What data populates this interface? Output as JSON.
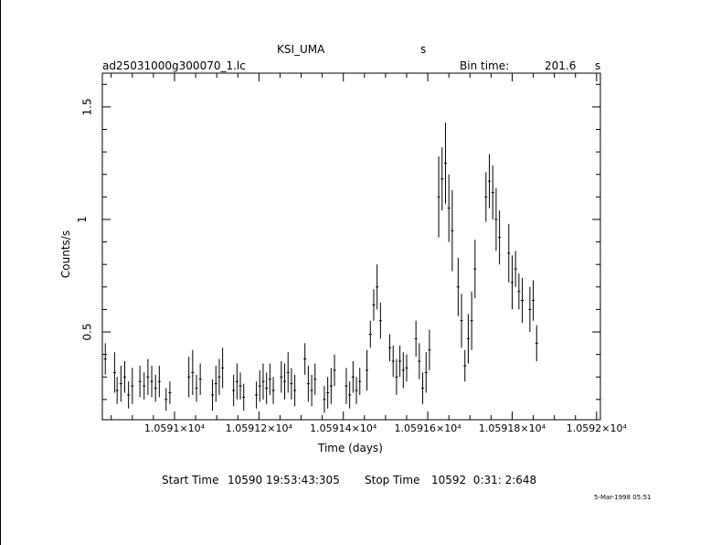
{
  "header": {
    "object": "KSI_UMA",
    "object_unit": "s",
    "filename": "ad25031000g300070_1.lc",
    "bin_label": "Bin time:",
    "bin_value": "201.6",
    "bin_unit": "s"
  },
  "footer": {
    "start_label": "Start Time",
    "start_value": "10590 19:53:43:305",
    "stop_label": "Stop Time",
    "stop_value": "10592  0:31: 2:648",
    "date_stamp": "5-Mar-1998 05:51"
  },
  "chart_data": {
    "type": "scatter",
    "xlabel": "Time (days)",
    "ylabel": "Counts/s",
    "xlim": [
      10590.829,
      10592.009
    ],
    "ylim": [
      0.11,
      1.65
    ],
    "yticks": [
      0.5,
      1,
      1.5
    ],
    "ytick_labels": [
      "0.5",
      "1",
      "1.5"
    ],
    "xticks": [
      10591.0,
      10591.2,
      10591.4,
      10591.6,
      10591.8,
      10592.0
    ],
    "xtick_labels": [
      "1.0591×10⁴",
      "1.05912×10⁴",
      "1.05914×10⁴",
      "1.05916×10⁴",
      "1.05918×10⁴",
      "1.0592×10⁴"
    ],
    "series": [
      {
        "points": [
          [
            10590.836,
            0.38,
            0.07
          ],
          [
            10590.858,
            0.32,
            0.09
          ],
          [
            10590.864,
            0.24,
            0.06
          ],
          [
            10590.873,
            0.27,
            0.08
          ],
          [
            10590.882,
            0.3,
            0.07
          ],
          [
            10590.891,
            0.22,
            0.06
          ],
          [
            10590.9,
            0.26,
            0.08
          ],
          [
            10590.918,
            0.28,
            0.07
          ],
          [
            10590.928,
            0.26,
            0.06
          ],
          [
            10590.937,
            0.3,
            0.08
          ],
          [
            10590.946,
            0.28,
            0.07
          ],
          [
            10590.955,
            0.25,
            0.06
          ],
          [
            10590.964,
            0.28,
            0.07
          ],
          [
            10590.98,
            0.2,
            0.05
          ],
          [
            10590.989,
            0.23,
            0.05
          ],
          [
            10591.034,
            0.3,
            0.09
          ],
          [
            10591.043,
            0.32,
            0.1
          ],
          [
            10591.052,
            0.25,
            0.06
          ],
          [
            10591.061,
            0.29,
            0.07
          ],
          [
            10591.09,
            0.22,
            0.07
          ],
          [
            10591.098,
            0.27,
            0.08
          ],
          [
            10591.106,
            0.3,
            0.08
          ],
          [
            10591.114,
            0.34,
            0.09
          ],
          [
            10591.14,
            0.24,
            0.07
          ],
          [
            10591.148,
            0.28,
            0.08
          ],
          [
            10591.156,
            0.26,
            0.06
          ],
          [
            10591.164,
            0.21,
            0.06
          ],
          [
            10591.194,
            0.22,
            0.06
          ],
          [
            10591.202,
            0.26,
            0.07
          ],
          [
            10591.21,
            0.28,
            0.08
          ],
          [
            10591.218,
            0.25,
            0.07
          ],
          [
            10591.226,
            0.29,
            0.07
          ],
          [
            10591.234,
            0.24,
            0.06
          ],
          [
            10591.253,
            0.3,
            0.07
          ],
          [
            10591.261,
            0.28,
            0.08
          ],
          [
            10591.269,
            0.32,
            0.09
          ],
          [
            10591.277,
            0.27,
            0.07
          ],
          [
            10591.285,
            0.24,
            0.07
          ],
          [
            10591.309,
            0.38,
            0.07
          ],
          [
            10591.317,
            0.27,
            0.08
          ],
          [
            10591.325,
            0.24,
            0.07
          ],
          [
            10591.333,
            0.29,
            0.07
          ],
          [
            10591.355,
            0.2,
            0.06
          ],
          [
            10591.363,
            0.23,
            0.07
          ],
          [
            10591.371,
            0.26,
            0.08
          ],
          [
            10591.379,
            0.33,
            0.07
          ],
          [
            10591.407,
            0.26,
            0.08
          ],
          [
            10591.415,
            0.22,
            0.06
          ],
          [
            10591.423,
            0.3,
            0.07
          ],
          [
            10591.431,
            0.24,
            0.06
          ],
          [
            10591.439,
            0.28,
            0.06
          ],
          [
            10591.456,
            0.33,
            0.09
          ],
          [
            10591.464,
            0.49,
            0.06
          ],
          [
            10591.472,
            0.62,
            0.07
          ],
          [
            10591.48,
            0.7,
            0.1
          ],
          [
            10591.488,
            0.55,
            0.08
          ],
          [
            10591.51,
            0.43,
            0.06
          ],
          [
            10591.518,
            0.37,
            0.07
          ],
          [
            10591.526,
            0.3,
            0.08
          ],
          [
            10591.534,
            0.37,
            0.07
          ],
          [
            10591.542,
            0.33,
            0.08
          ],
          [
            10591.55,
            0.34,
            0.06
          ],
          [
            10591.572,
            0.47,
            0.08
          ],
          [
            10591.58,
            0.37,
            0.08
          ],
          [
            10591.588,
            0.25,
            0.07
          ],
          [
            10591.596,
            0.32,
            0.09
          ],
          [
            10591.604,
            0.42,
            0.09
          ],
          [
            10591.626,
            1.1,
            0.18
          ],
          [
            10591.634,
            1.18,
            0.14
          ],
          [
            10591.642,
            1.25,
            0.18
          ],
          [
            10591.65,
            1.05,
            0.15
          ],
          [
            10591.658,
            0.95,
            0.18
          ],
          [
            10591.672,
            0.7,
            0.13
          ],
          [
            10591.68,
            0.55,
            0.12
          ],
          [
            10591.688,
            0.35,
            0.07
          ],
          [
            10591.696,
            0.47,
            0.11
          ],
          [
            10591.704,
            0.55,
            0.13
          ],
          [
            10591.712,
            0.78,
            0.13
          ],
          [
            10591.738,
            1.1,
            0.11
          ],
          [
            10591.746,
            1.17,
            0.12
          ],
          [
            10591.754,
            1.12,
            0.12
          ],
          [
            10591.762,
            1.0,
            0.14
          ],
          [
            10591.77,
            0.92,
            0.12
          ],
          [
            10591.792,
            0.85,
            0.13
          ],
          [
            10591.8,
            0.72,
            0.12
          ],
          [
            10591.808,
            0.78,
            0.08
          ],
          [
            10591.816,
            0.68,
            0.08
          ],
          [
            10591.824,
            0.64,
            0.1
          ],
          [
            10591.842,
            0.6,
            0.1
          ],
          [
            10591.85,
            0.64,
            0.09
          ],
          [
            10591.858,
            0.45,
            0.08
          ]
        ]
      }
    ]
  }
}
